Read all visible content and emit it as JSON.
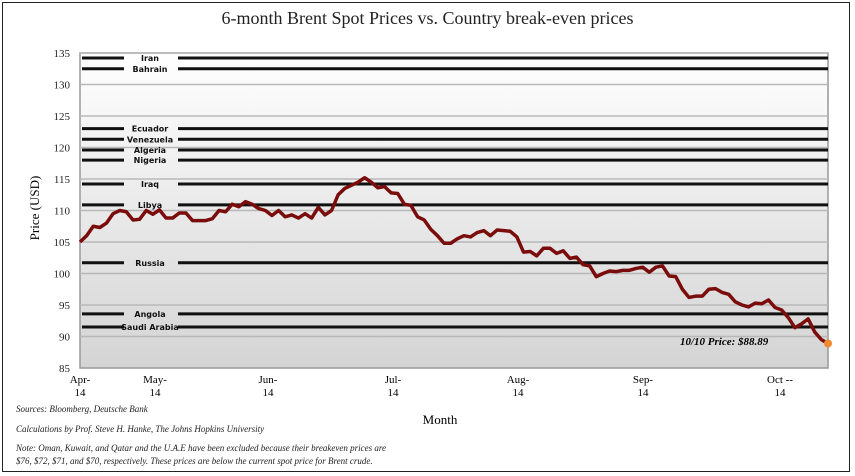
{
  "chart_data": {
    "type": "line",
    "title": "6-month Brent Spot Prices vs. Country break-even prices",
    "xlabel": "Month",
    "ylabel": "Price (USD)",
    "ylim": [
      85,
      135
    ],
    "yticks": [
      85,
      90,
      95,
      100,
      105,
      110,
      115,
      120,
      125,
      130,
      135
    ],
    "xtick_labels": [
      [
        "Apr-",
        "14"
      ],
      [
        "May-",
        "14"
      ],
      [
        "Jun-",
        "14"
      ],
      [
        "Jul-",
        "14"
      ],
      [
        "Aug-",
        "14"
      ],
      [
        "Sep-",
        "14"
      ],
      [
        "Oct --",
        "14"
      ]
    ],
    "grid": true,
    "series_color": "#7a0c0c",
    "endpoint_color": "#f08a30",
    "breakeven_color": "#111111",
    "brent_prices": [
      105,
      106,
      107.5,
      107.3,
      108,
      109.5,
      110,
      109.8,
      108.5,
      108.6,
      110,
      109.4,
      110.1,
      108.8,
      108.8,
      109.6,
      109.6,
      108.4,
      108.4,
      108.4,
      108.7,
      110,
      109.8,
      111,
      110.6,
      111.4,
      111,
      110.3,
      110,
      109.2,
      110,
      109,
      109.3,
      108.8,
      109.5,
      108.8,
      110.5,
      109.3,
      110,
      112.5,
      113.5,
      114,
      114.5,
      115.2,
      114.5,
      113.6,
      113.8,
      112.8,
      112.7,
      111,
      110.8,
      109,
      108.5,
      107,
      106,
      104.8,
      104.8,
      105.5,
      106,
      105.8,
      106.5,
      106.8,
      106,
      106.9,
      106.8,
      106.7,
      105.8,
      103.4,
      103.5,
      102.8,
      104,
      104,
      103.2,
      103.6,
      102.4,
      102.6,
      101.4,
      101.2,
      99.5,
      100,
      100.4,
      100.3,
      100.5,
      100.5,
      100.8,
      101,
      100.2,
      101,
      101.2,
      99.6,
      99.5,
      97.5,
      96.2,
      96.4,
      96.4,
      97.5,
      97.6,
      97,
      96.7,
      95.5,
      95,
      94.7,
      95.3,
      95.2,
      95.8,
      94.6,
      94.2,
      93,
      91.4,
      92,
      92.8,
      90.7,
      89.5,
      88.89
    ],
    "breakeven": [
      {
        "country": "Iran",
        "price": 134.2
      },
      {
        "country": "Bahrain",
        "price": 132.5
      },
      {
        "country": "Ecuador",
        "price": 123
      },
      {
        "country": "Venezuela",
        "price": 121.3
      },
      {
        "country": "Algeria",
        "price": 119.6
      },
      {
        "country": "Nigeria",
        "price": 118
      },
      {
        "country": "Iraq",
        "price": 114.2
      },
      {
        "country": "Libya",
        "price": 110.9
      },
      {
        "country": "Russia",
        "price": 101.7
      },
      {
        "country": "Angola",
        "price": 93.6
      },
      {
        "country": "Saudi Arabia",
        "price": 91.5
      }
    ],
    "annotation": "10/10 Price: $88.89"
  },
  "notes": {
    "sources": "Sources: Bloomberg, Deutsche Bank",
    "calculations": "Calculations by Prof. Steve H. Hanke, The Johns Hopkins University",
    "note_line1": "Note: Oman, Kuwait, and Qatar and the U.A.E  have been excluded because their breakeven prices are",
    "note_line2": "$76, $72, $71, and $70,  respectively. These prices  are below the current spot price for Brent crude."
  }
}
